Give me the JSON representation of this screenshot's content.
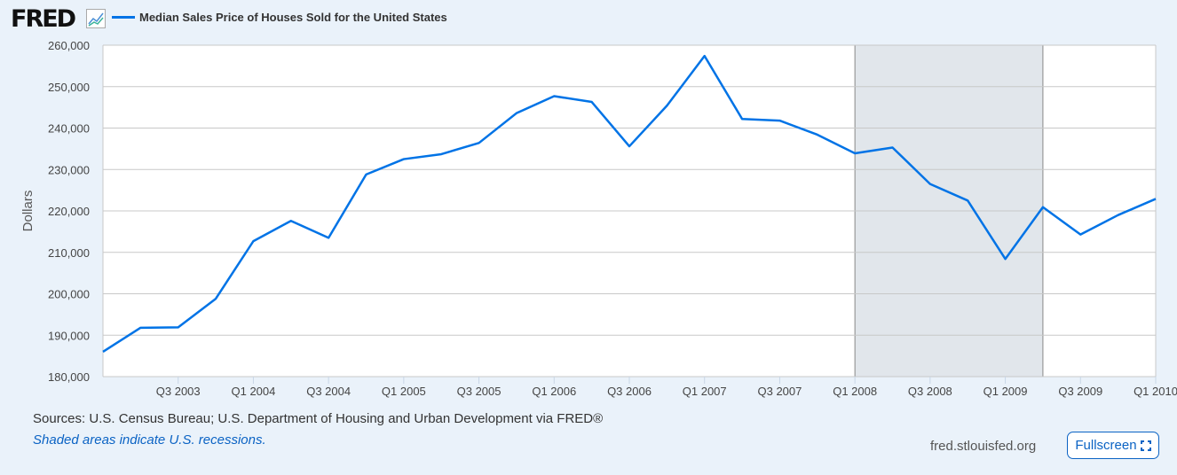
{
  "header": {
    "logo": "FRED",
    "logo_icon": "chart-line-icon"
  },
  "chart_data": {
    "type": "line",
    "series": [
      {
        "name": "Median Sales Price of Houses Sold for the United States",
        "color": "#0073e6",
        "values": [
          186000,
          191800,
          191900,
          198800,
          212700,
          217600,
          213500,
          228800,
          232500,
          233700,
          236400,
          243600,
          247700,
          246300,
          235600,
          245400,
          257400,
          242200,
          241800,
          238400,
          233900,
          235300,
          226500,
          222500,
          208400,
          220900,
          214300,
          219000,
          222900
        ]
      }
    ],
    "x": [
      "Q1 2003",
      "Q2 2003",
      "Q3 2003",
      "Q4 2003",
      "Q1 2004",
      "Q2 2004",
      "Q3 2004",
      "Q4 2004",
      "Q1 2005",
      "Q2 2005",
      "Q3 2005",
      "Q4 2005",
      "Q1 2006",
      "Q2 2006",
      "Q3 2006",
      "Q4 2006",
      "Q1 2007",
      "Q2 2007",
      "Q3 2007",
      "Q4 2007",
      "Q1 2008",
      "Q2 2008",
      "Q3 2008",
      "Q4 2008",
      "Q1 2009",
      "Q2 2009",
      "Q3 2009",
      "Q4 2009",
      "Q1 2010"
    ],
    "xticks": [
      "Q3 2003",
      "Q1 2004",
      "Q3 2004",
      "Q1 2005",
      "Q3 2005",
      "Q1 2006",
      "Q3 2006",
      "Q1 2007",
      "Q3 2007",
      "Q1 2008",
      "Q3 2008",
      "Q1 2009",
      "Q3 2009",
      "Q1 2010"
    ],
    "yticks": [
      "180,000",
      "190,000",
      "200,000",
      "210,000",
      "220,000",
      "230,000",
      "240,000",
      "250,000",
      "260,000"
    ],
    "ylim": [
      180000,
      260000
    ],
    "ylabel": "Dollars",
    "grid": true,
    "recession": {
      "from": "Q1 2008",
      "to": "Q2 2009",
      "color": "#e1e6eb"
    },
    "legend": "top-left"
  },
  "footer": {
    "sources": "Sources: U.S. Census Bureau; U.S. Department of Housing and Urban Development via FRED®",
    "note": "Shaded areas indicate U.S. recessions.",
    "site": "fred.stlouisfed.org",
    "fullscreen": "Fullscreen",
    "fullscreen_icon": "fullscreen-icon"
  }
}
